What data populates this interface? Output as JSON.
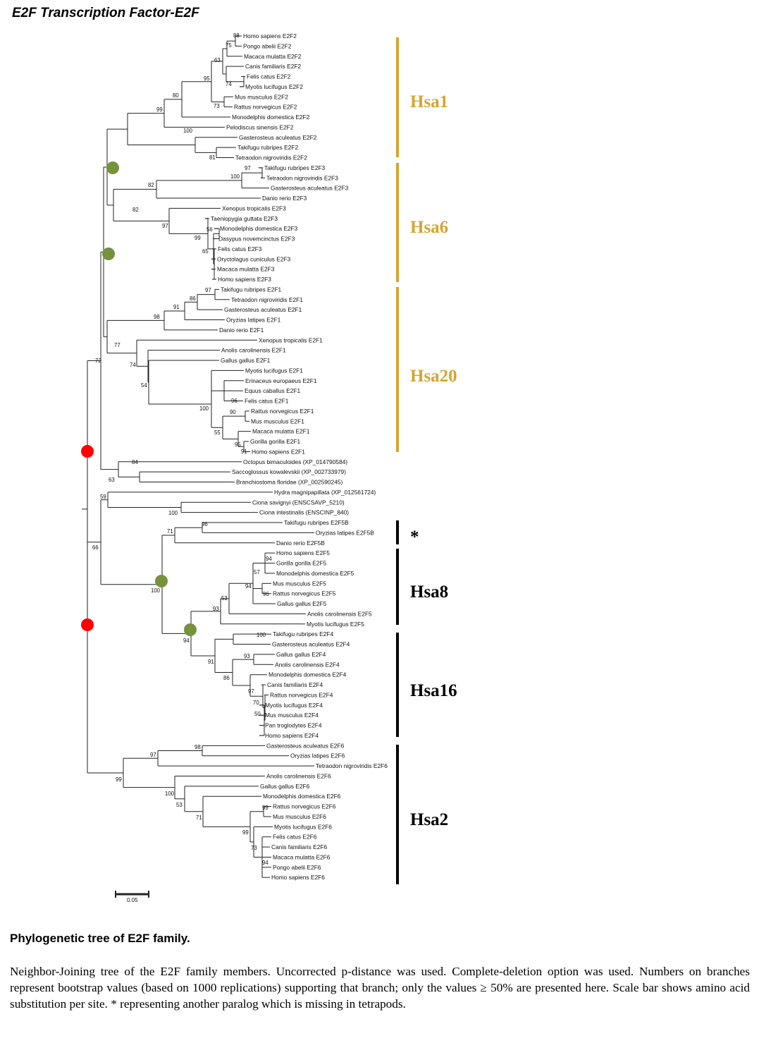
{
  "title": "E2F Transcription Factor-E2F",
  "tree": {
    "leaves": [
      "Homo sapiens E2F2",
      "Pongo abelii E2F2",
      "Macaca mulatta E2F2",
      "Canis familiaris E2F2",
      "Felis catus E2F2",
      "Myotis lucifugus E2F2",
      "Mus musculus E2F2",
      "Rattus norvegicus E2F2",
      "Monodelphis domestica E2F2",
      "Pelodiscus sinensis E2F2",
      "Gasterosteus aculeatus E2F2",
      "Takifugu rubripes E2F2",
      "Tetraodon nigroviridis E2F2",
      "Takifugu rubripes E2F3",
      "Tetraodon nigroviridis E2F3",
      "Gasterosteus aculeatus E2F3",
      "Danio rerio E2F3",
      "Xenopus tropicalis E2F3",
      "Taeniopygia guttata E2F3",
      "Monodelphis domestica E2F3",
      "Dasypus novemcinctus E2F3",
      "Felis catus E2F3",
      "Oryctolagus cuniculus E2F3",
      "Macaca mulatta E2F3",
      "Homo sapiens E2F3",
      "Takifugu rubripes E2F1",
      "Tetraodon nigroviridis E2F1",
      "Gasterosteus aculeatus E2F1",
      "Oryzias latipes E2F1",
      "Danio rerio E2F1",
      "Xenopus tropicalis E2F1",
      "Anolis carolinensis E2F1",
      "Gallus gallus E2F1",
      "Myotis lucifugus E2F1",
      "Erinaceus europaeus E2F1",
      "Equus caballus E2F1",
      "Felis catus E2F1",
      "Rattus norvegicus E2F1",
      "Mus musculus E2F1",
      "Macaca mulatta E2F1",
      "Gorilla gorilla E2F1",
      "Homo sapiens E2F1",
      "Octopus bimaculoides (XP_014790584)",
      "Saccoglossus kowalevskii (XP_002733979)",
      "Branchiostoma floridae (XP_002590245)",
      "Hydra magnipapillata (XP_012561724)",
      "Ciona savignyi (ENSCSAVP_5210)",
      "Ciona intestinalis (ENSCINP_840)",
      "Takifugu rubripes E2F5B",
      "Oryzias latipes E2F5B",
      "Danio rerio E2F5B",
      "Homo sapiens E2F5",
      "Gorilla gorilla E2F5",
      "Monodelphis domestica E2F5",
      "Mus musculus E2F5",
      "Rattus norvegicus E2F5",
      "Gallus gallus E2F5",
      "Anolis carolinensis E2F5",
      "Myotis lucifugus E2F5",
      "Takifugu rubripes E2F4",
      "Gasterosteus aculeatus E2F4",
      "Gallus gallus E2F4",
      "Anolis carolinensis E2F4",
      "Monodelphis domestica E2F4",
      "Canis familiaris E2F4",
      "Rattus norvegicus E2F4",
      "Myotis lucifugus E2F4",
      "Mus musculus E2F4",
      "Pan troglodytes E2F4",
      "Homo sapiens E2F4",
      "Gasterosteus aculeatus E2F6",
      "Oryzias latipes E2F6",
      "Tetraodon nigroviridis E2F6",
      "Anolis carolinensis E2F6",
      "Gallus gallus E2F6",
      "Monodelphis domestica E2F6",
      "Rattus norvegicus E2F6",
      "Mus musculus E2F6",
      "Myotis lucifugus E2F6",
      "Felis catus E2F6",
      "Canis familiaris E2F6",
      "Macaca mulatta E2F6",
      "Pongo abelii E2F6",
      "Homo sapiens E2F6"
    ],
    "bootstrap": [
      "88",
      "75",
      "63",
      "74",
      "95",
      "73",
      "80",
      "99",
      "100",
      "81",
      "97",
      "100",
      "82",
      "82",
      "97",
      "56",
      "99",
      "65",
      "97",
      "86",
      "91",
      "98",
      "77",
      "74",
      "54",
      "96",
      "100",
      "90",
      "55",
      "95",
      "91",
      "84",
      "63",
      "72",
      "59",
      "100",
      "66",
      "96",
      "71",
      "94",
      "57",
      "94",
      "96",
      "53",
      "93",
      "100",
      "100",
      "94",
      "93",
      "91",
      "86",
      "97",
      "70",
      "50",
      "98",
      "97",
      "99",
      "100",
      "53",
      "71",
      "99",
      "99",
      "73",
      "94"
    ],
    "clades": [
      {
        "label": "Hsa1",
        "color": "#D4A531"
      },
      {
        "label": "Hsa6",
        "color": "#D4A531"
      },
      {
        "label": "Hsa20",
        "color": "#D4A531"
      },
      {
        "label": "*",
        "color": "#000000"
      },
      {
        "label": "Hsa8",
        "color": "#000000"
      },
      {
        "label": "Hsa16",
        "color": "#000000"
      },
      {
        "label": "Hsa2",
        "color": "#000000"
      }
    ],
    "markers": {
      "green": "#76923C",
      "red": "#FF0000"
    },
    "scale_bar_label": "0.05"
  },
  "caption": {
    "title": "Phylogenetic tree of E2F family.",
    "body": "Neighbor-Joining tree of the E2F family members. Uncorrected p-distance was used. Complete-deletion option was used. Numbers on branches represent bootstrap values (based on 1000 replications) supporting that branch; only the values ≥ 50% are presented here. Scale bar shows amino acid substitution per site. * representing another paralog which is missing in tetrapods."
  }
}
